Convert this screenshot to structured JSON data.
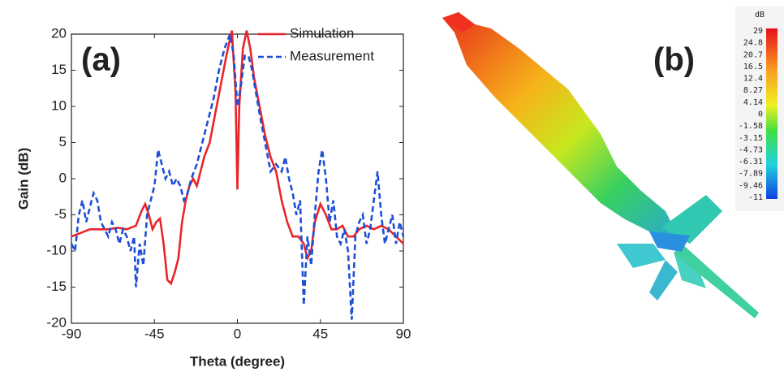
{
  "chart_data": [
    {
      "type": "line",
      "label": "(a)",
      "x_label": "Theta (degree)",
      "y_label": "Gain (dB)",
      "xlim": [
        -90,
        90
      ],
      "xticks": [
        -90,
        -45,
        0,
        45,
        90
      ],
      "ylim": [
        -20,
        20
      ],
      "yticks": [
        -20,
        -15,
        -10,
        -5,
        0,
        5,
        10,
        15,
        20
      ],
      "legend": "upper right",
      "series": [
        {
          "name": "Simulation",
          "color": "#e8262a",
          "line_style": "solid",
          "x": [
            -90,
            -85,
            -80,
            -75,
            -70,
            -65,
            -60,
            -55,
            -52,
            -50,
            -48,
            -46,
            -44,
            -42,
            -40,
            -38,
            -36,
            -34,
            -32,
            -30,
            -28,
            -26,
            -24,
            -22,
            -20,
            -18,
            -15,
            -12,
            -9,
            -6,
            -3,
            -1,
            0,
            1,
            3,
            5,
            7,
            9,
            12,
            15,
            18,
            21,
            24,
            27,
            30,
            33,
            36,
            38,
            40,
            42,
            45,
            48,
            51,
            54,
            57,
            60,
            63,
            66,
            70,
            74,
            78,
            82,
            86,
            90
          ],
          "values": [
            -8,
            -7.5,
            -7,
            -7,
            -7,
            -6.8,
            -7,
            -6.5,
            -4.5,
            -3.5,
            -5,
            -7,
            -6,
            -5.5,
            -9,
            -14,
            -14.5,
            -13,
            -11,
            -6,
            -3,
            -1,
            0,
            -1,
            1,
            3,
            5,
            9,
            13,
            17,
            20.5,
            12,
            -1.5,
            10,
            18,
            20.5,
            18,
            14,
            10,
            6,
            3,
            1,
            -3,
            -6,
            -8,
            -8,
            -9,
            -11,
            -10,
            -6,
            -3.5,
            -5,
            -7,
            -7,
            -6.5,
            -8,
            -8,
            -7,
            -6.5,
            -7,
            -6.5,
            -7,
            -8,
            -9
          ]
        },
        {
          "name": "Measurement",
          "color": "#1f4fd6",
          "line_style": "dashed",
          "x": [
            -90,
            -88,
            -86,
            -84,
            -82,
            -80,
            -78,
            -76,
            -74,
            -72,
            -70,
            -68,
            -66,
            -64,
            -62,
            -60,
            -58,
            -56,
            -55,
            -53,
            -51,
            -49,
            -47,
            -45,
            -43,
            -41,
            -39,
            -37,
            -35,
            -33,
            -31,
            -29,
            -27,
            -25,
            -22,
            -19,
            -16,
            -13,
            -10,
            -7,
            -4,
            -2,
            0,
            2,
            4,
            6,
            8,
            10,
            12,
            15,
            18,
            21,
            24,
            26,
            28,
            30,
            32,
            34,
            36,
            38,
            40,
            42,
            44,
            46,
            48,
            50,
            52,
            54,
            56,
            58,
            60,
            62,
            64,
            66,
            68,
            70,
            72,
            74,
            76,
            78,
            80,
            82,
            84,
            86,
            88,
            90
          ],
          "values": [
            -9,
            -10,
            -5,
            -3,
            -6,
            -4,
            -2,
            -3,
            -6,
            -7,
            -8,
            -6,
            -7,
            -9,
            -7,
            -8,
            -10,
            -8,
            -15,
            -9,
            -12,
            -5,
            -3,
            -1,
            4,
            2,
            0,
            1,
            -1,
            0,
            -1,
            -3,
            -2,
            0,
            2,
            5,
            8,
            11,
            15,
            18,
            20,
            17,
            10,
            13,
            17,
            17,
            15,
            12,
            9,
            5,
            1,
            2,
            1,
            3,
            0,
            -2,
            -5,
            -3,
            -17.5,
            -8,
            -12,
            -5,
            1,
            4,
            0,
            -6,
            -3,
            -8,
            -9,
            -7,
            -10,
            -19.5,
            -8,
            -6,
            -5,
            -9,
            -7,
            -3,
            1,
            -5,
            -9,
            -7,
            -5,
            -9,
            -6,
            -8
          ]
        }
      ]
    },
    {
      "type": "surface3d",
      "label": "(b)",
      "colorbar": {
        "title": "dB",
        "ticks": [
          29,
          24.8,
          20.7,
          16.5,
          12.4,
          8.27,
          4.14,
          0,
          -1.58,
          -3.15,
          -4.73,
          -6.31,
          -7.89,
          -9.46,
          -11
        ]
      }
    }
  ]
}
